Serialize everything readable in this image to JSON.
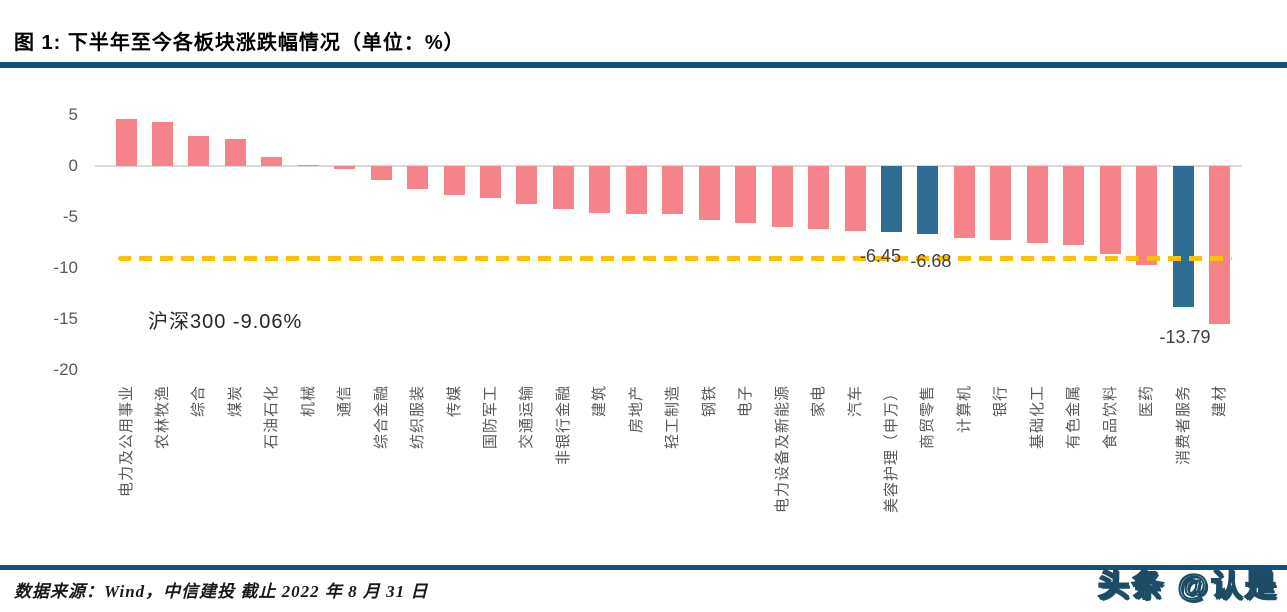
{
  "header": {
    "title": "图 1: 下半年至今各板块涨跌幅情况（单位：%）"
  },
  "footer": {
    "source": "数据来源：Wind，中信建投 截止 2022 年 8 月 31 日",
    "watermark": "头条 @认是"
  },
  "chart_data": {
    "type": "bar",
    "title": "下半年至今各板块涨跌幅情况（单位：%）",
    "xlabel": "",
    "ylabel": "",
    "ylim": [
      -20,
      5
    ],
    "yticks": [
      5,
      0,
      -5,
      -10,
      -15,
      -20
    ],
    "grid": "zero-line-only",
    "legend": "none",
    "categories": [
      "电力及公用事业",
      "农林牧渔",
      "综合",
      "煤炭",
      "石油石化",
      "机械",
      "通信",
      "综合金融",
      "纺织服装",
      "传媒",
      "国防军工",
      "交通运输",
      "非银行金融",
      "建筑",
      "房地产",
      "轻工制造",
      "钢铁",
      "电子",
      "电力设备及新能源",
      "家电",
      "汽车",
      "美容护理（申万）",
      "商贸零售",
      "计算机",
      "银行",
      "基础化工",
      "有色金属",
      "食品饮料",
      "医药",
      "消费者服务",
      "建材"
    ],
    "values": [
      4.6,
      4.3,
      2.9,
      2.6,
      0.9,
      0.1,
      -0.3,
      -1.4,
      -2.3,
      -2.8,
      -3.1,
      -3.7,
      -4.2,
      -4.6,
      -4.7,
      -4.75,
      -5.3,
      -5.6,
      -6.0,
      -6.2,
      -6.35,
      -6.45,
      -6.68,
      -7.1,
      -7.3,
      -7.5,
      -7.7,
      -8.6,
      -9.75,
      -13.79,
      -15.5
    ],
    "highlight_indices": [
      21,
      22,
      29
    ],
    "data_labels": [
      {
        "index": 21,
        "text": "-6.45"
      },
      {
        "index": 22,
        "text": "-6.68"
      },
      {
        "index": 29,
        "text": "-13.79"
      }
    ],
    "benchmark": {
      "label": "沪深300 -9.06%",
      "value": -9.06
    },
    "colors": {
      "bar": "#F6838A",
      "highlight": "#2E6D91",
      "benchmark_line": "#FFC000",
      "zero_line": "#D9D9D9",
      "rule": "#15507A"
    }
  }
}
